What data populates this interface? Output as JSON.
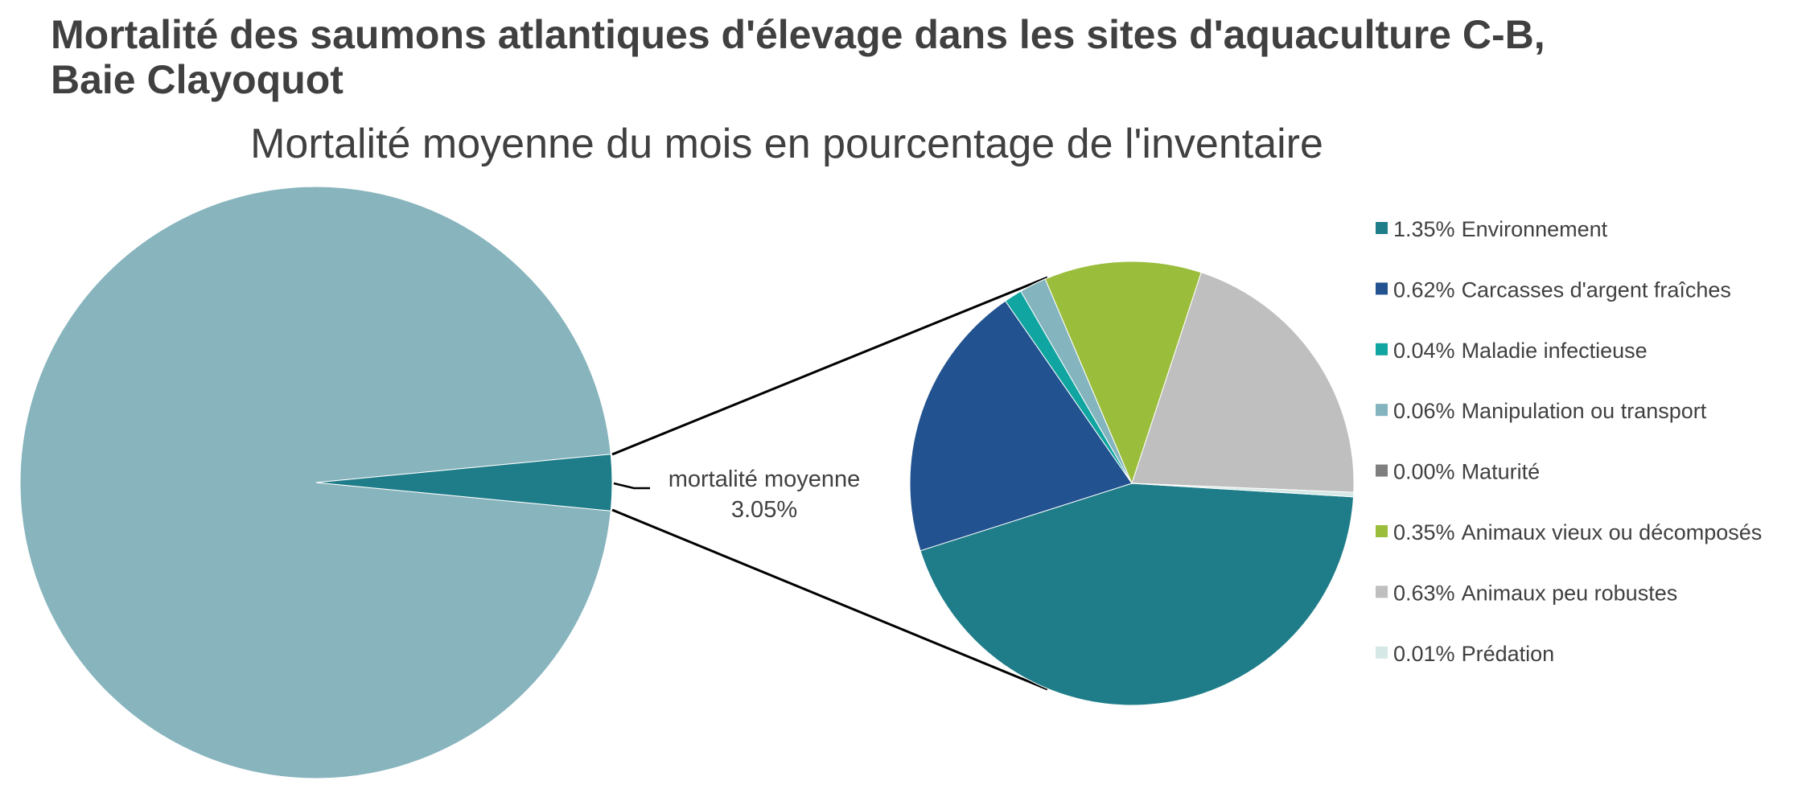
{
  "chart_data": [
    {
      "type": "pie",
      "title": [
        "Mortalité des saumons atlantiques d'élevage dans les sites d'aquaculture C-B,",
        "Baie Clayoquot"
      ],
      "subtitle": "Mortalité moyenne du mois en pourcentage de l'inventaire",
      "categories": [
        null,
        "mortalité moyenne"
      ],
      "values": [
        96.95,
        3.05
      ],
      "value_labels": [
        null,
        "3.05%"
      ],
      "colors": [
        "#87b4bd",
        "#1f7d89"
      ]
    },
    {
      "type": "pie",
      "categories": [
        "Environnement",
        "Carcasses d'argent fraîches",
        "Maladie infectieuse",
        "Manipulation ou transport",
        "Maturité",
        "Animaux vieux ou décomposés",
        "Animaux peu robustes",
        "Prédation"
      ],
      "values": [
        1.35,
        0.62,
        0.04,
        0.06,
        0.0,
        0.35,
        0.63,
        0.01
      ],
      "value_labels": [
        "1.35%",
        "0.62%",
        "0.04%",
        "0.06%",
        "0.00%",
        "0.35%",
        "0.63%",
        "0.01%"
      ],
      "colors": [
        "#1f7d89",
        "#22528f",
        "#10a5a0",
        "#84b4bd",
        "#7f7f7f",
        "#9bbd3c",
        "#bfbfbf",
        "#d5e8e6"
      ],
      "legend": "right"
    }
  ]
}
